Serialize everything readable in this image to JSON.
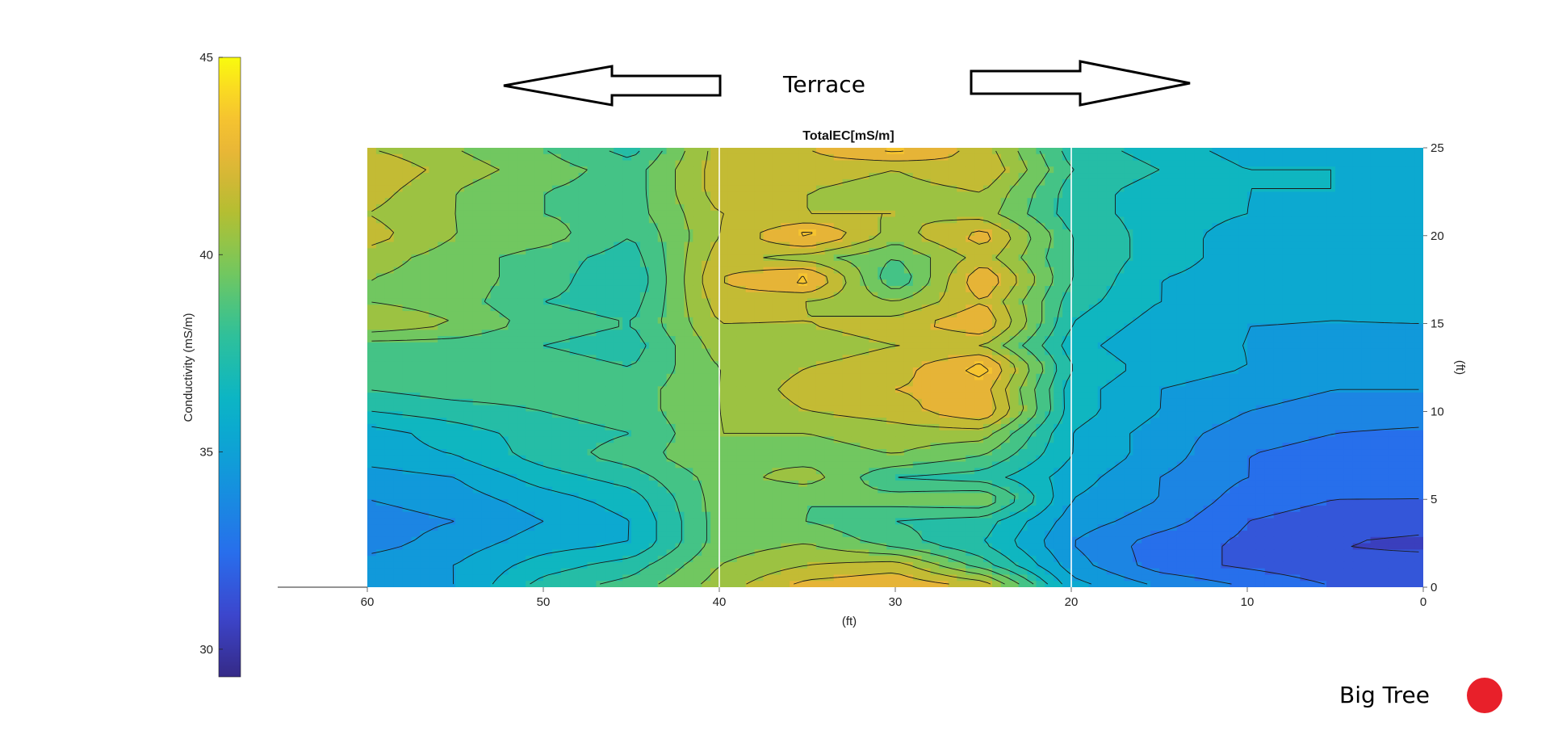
{
  "chart_data": {
    "type": "heatmap",
    "title": "TotalEC[mS/m]",
    "xlabel": "(ft)",
    "ylabel": "(ft)",
    "x_reversed": true,
    "xlim": [
      0,
      60
    ],
    "ylim": [
      0,
      25
    ],
    "xticks": [
      "60",
      "50",
      "40",
      "30",
      "20",
      "10",
      "0"
    ],
    "yticks": [
      "0",
      "5",
      "10",
      "15",
      "20",
      "25"
    ],
    "section_boundaries_ft": [
      40,
      20
    ],
    "colorbar": {
      "label": "Conductivity (mS/m)",
      "range": [
        29.3,
        45.0
      ],
      "ticks": [
        "30",
        "35",
        "40",
        "45"
      ],
      "colormap": "parula"
    },
    "grid_y_ft": [
      0,
      1.25,
      2.5,
      3.75,
      5,
      6.25,
      7.5,
      8.75,
      10,
      11.25,
      12.5,
      13.75,
      15,
      16.25,
      17.5,
      18.75,
      20,
      21.25,
      22.5,
      23.75,
      25
    ],
    "grid_x_ft": [
      60,
      55,
      50,
      45,
      40,
      35,
      30,
      25,
      20,
      15,
      10,
      5,
      0
    ],
    "values": [
      [
        34.0,
        35.0,
        37.5,
        38.5,
        40.5,
        42.5,
        43.0,
        42.0,
        35.5,
        34.0,
        33.0,
        32.0,
        32.0
      ],
      [
        34.5,
        35.0,
        36.5,
        37.5,
        40.0,
        41.0,
        41.5,
        38.5,
        34.5,
        32.5,
        31.8,
        31.2,
        31.3
      ],
      [
        33.5,
        34.5,
        35.5,
        36.0,
        39.5,
        40.0,
        38.5,
        37.0,
        34.0,
        32.5,
        31.8,
        31.0,
        30.8
      ],
      [
        33.5,
        34.0,
        35.0,
        36.0,
        39.5,
        39.0,
        38.0,
        37.5,
        34.5,
        33.5,
        32.0,
        31.5,
        31.3
      ],
      [
        34.0,
        34.5,
        35.5,
        36.5,
        39.5,
        39.0,
        39.5,
        40.0,
        35.0,
        34.0,
        32.5,
        32.0,
        32.0
      ],
      [
        34.5,
        35.0,
        36.5,
        37.5,
        39.5,
        40.5,
        38.0,
        37.5,
        35.5,
        34.0,
        33.0,
        32.5,
        32.5
      ],
      [
        35.5,
        36.0,
        37.5,
        38.5,
        40.0,
        39.5,
        40.0,
        39.0,
        36.0,
        34.5,
        33.0,
        32.5,
        32.5
      ],
      [
        35.5,
        36.5,
        37.5,
        38.0,
        40.0,
        40.0,
        40.5,
        40.5,
        36.0,
        34.5,
        33.5,
        33.0,
        32.8
      ],
      [
        37.0,
        37.5,
        38.0,
        38.5,
        40.0,
        41.0,
        41.5,
        43.0,
        36.5,
        35.0,
        34.0,
        33.5,
        33.5
      ],
      [
        38.0,
        38.5,
        38.5,
        38.5,
        40.0,
        41.5,
        42.0,
        42.5,
        36.5,
        35.0,
        34.5,
        34.0,
        34.0
      ],
      [
        38.5,
        39.0,
        38.5,
        38.0,
        40.0,
        41.0,
        41.5,
        43.5,
        37.0,
        35.5,
        35.0,
        34.5,
        34.5
      ],
      [
        38.5,
        38.5,
        38.0,
        37.5,
        40.5,
        40.5,
        41.0,
        41.0,
        36.5,
        35.0,
        35.0,
        34.5,
        34.5
      ],
      [
        41.0,
        40.0,
        38.5,
        38.0,
        41.0,
        41.0,
        41.5,
        43.0,
        37.0,
        35.5,
        35.0,
        35.0,
        35.0
      ],
      [
        40.0,
        39.5,
        38.0,
        37.5,
        41.5,
        41.0,
        40.0,
        42.0,
        37.5,
        36.0,
        35.5,
        35.0,
        35.5
      ],
      [
        40.0,
        39.5,
        38.5,
        37.0,
        42.0,
        43.5,
        38.0,
        43.0,
        38.0,
        36.0,
        35.5,
        35.5,
        35.5
      ],
      [
        40.5,
        39.5,
        38.5,
        37.5,
        41.5,
        40.5,
        39.0,
        41.5,
        38.0,
        36.5,
        35.5,
        35.5,
        35.5
      ],
      [
        41.5,
        40.0,
        39.5,
        38.0,
        41.0,
        43.5,
        40.5,
        42.5,
        38.0,
        36.5,
        35.5,
        35.5,
        35.5
      ],
      [
        41.0,
        40.0,
        39.0,
        38.5,
        41.0,
        41.0,
        41.0,
        40.5,
        37.5,
        36.5,
        36.0,
        35.5,
        35.5
      ],
      [
        41.5,
        40.0,
        39.0,
        38.5,
        41.5,
        41.0,
        40.5,
        41.0,
        37.5,
        36.5,
        36.0,
        36.0,
        35.5
      ],
      [
        42.0,
        40.5,
        39.5,
        38.5,
        41.5,
        41.5,
        41.0,
        42.0,
        38.0,
        37.0,
        36.0,
        36.0,
        35.5
      ],
      [
        41.0,
        40.0,
        39.0,
        37.5,
        41.5,
        42.0,
        43.5,
        41.5,
        37.5,
        36.5,
        35.5,
        35.5,
        35.0
      ]
    ]
  },
  "annotations": {
    "terrace_label": "Terrace",
    "big_tree_label": "Big Tree",
    "big_tree_marker_color": "#e8202a",
    "arrow_outline_color": "#000000"
  }
}
